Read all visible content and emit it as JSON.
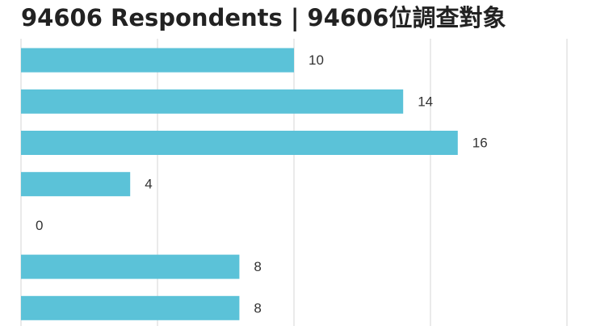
{
  "chart_data": {
    "type": "bar",
    "orientation": "horizontal",
    "title": "94606 Respondents | 94606位調查對象",
    "values": [
      10,
      14,
      16,
      4,
      0,
      8,
      8
    ],
    "color": "#5bc2d8",
    "xlim": [
      0,
      20
    ],
    "xticks": [
      0,
      5,
      10,
      15,
      20
    ],
    "grid": true
  }
}
